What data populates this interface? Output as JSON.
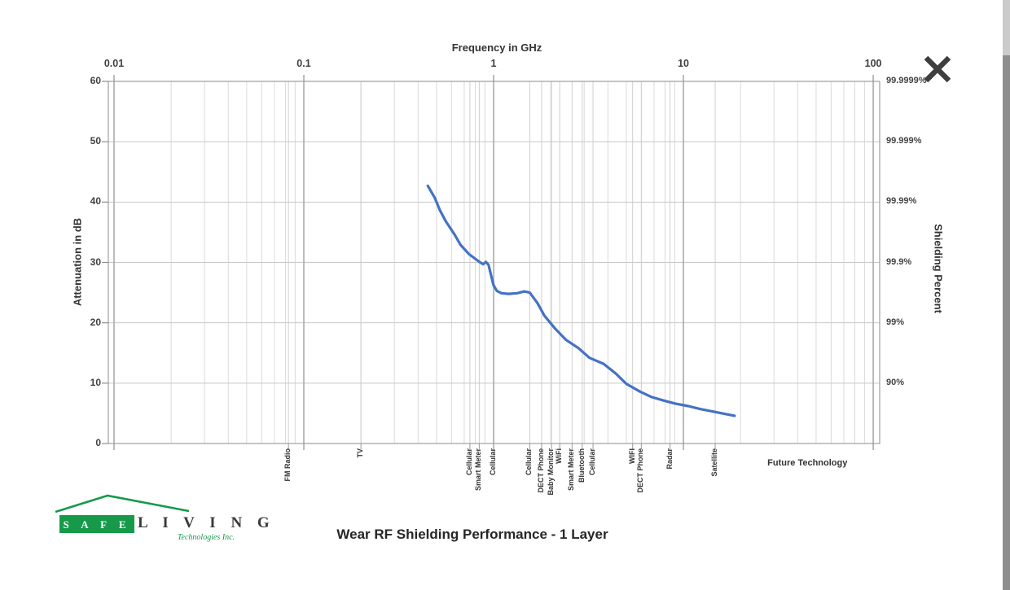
{
  "icons": {
    "close": "x-cross"
  },
  "logo": {
    "safe_letters": "S A F E",
    "living_letters": "L I V I N G",
    "subtitle": "Technologies Inc.",
    "brand_green": "#169a4a"
  },
  "chart_data": {
    "type": "line",
    "title": "Wear RF Shielding Performance - 1 Layer",
    "x_axis": {
      "label": "Frequency in GHz",
      "scale": "log",
      "tick_labels": [
        "0.01",
        "0.1",
        "1",
        "10",
        "100"
      ],
      "tick_values": [
        0.01,
        0.1,
        1,
        10,
        100
      ],
      "log_range": [
        -2.03,
        2.034
      ],
      "grid": true
    },
    "y_left_axis": {
      "label": "Attenuation in dB",
      "tick_values": [
        60,
        50,
        40,
        30,
        20,
        10,
        0
      ],
      "range": [
        0,
        60
      ],
      "grid_step": 10
    },
    "y_right_axis": {
      "label": "Shielding Percent",
      "ticks": [
        {
          "db": 60,
          "label": "99.9999%"
        },
        {
          "db": 50,
          "label": "99.999%"
        },
        {
          "db": 40,
          "label": "99.99%"
        },
        {
          "db": 30,
          "label": "99.9%"
        },
        {
          "db": 20,
          "label": "99%"
        },
        {
          "db": 10,
          "label": "90%"
        }
      ]
    },
    "series": [
      {
        "name": "Wear RF Shielding - 1 Layer",
        "color": "#4472c4",
        "points_freq_db": [
          [
            0.45,
            42.7
          ],
          [
            0.49,
            40.7
          ],
          [
            0.52,
            38.7
          ],
          [
            0.56,
            36.8
          ],
          [
            0.62,
            34.7
          ],
          [
            0.67,
            32.9
          ],
          [
            0.74,
            31.4
          ],
          [
            0.8,
            30.6
          ],
          [
            0.85,
            30.0
          ],
          [
            0.88,
            29.7
          ],
          [
            0.91,
            30.1
          ],
          [
            0.94,
            29.6
          ],
          [
            0.97,
            27.8
          ],
          [
            1.0,
            26.2
          ],
          [
            1.04,
            25.3
          ],
          [
            1.1,
            24.9
          ],
          [
            1.2,
            24.8
          ],
          [
            1.33,
            24.9
          ],
          [
            1.45,
            25.2
          ],
          [
            1.55,
            25.0
          ],
          [
            1.7,
            23.3
          ],
          [
            1.85,
            21.2
          ],
          [
            2.1,
            19.1
          ],
          [
            2.4,
            17.2
          ],
          [
            2.8,
            15.8
          ],
          [
            3.2,
            14.2
          ],
          [
            3.8,
            13.2
          ],
          [
            4.4,
            11.6
          ],
          [
            5.0,
            9.9
          ],
          [
            5.9,
            8.6
          ],
          [
            6.8,
            7.7
          ],
          [
            7.9,
            7.1
          ],
          [
            9.1,
            6.6
          ],
          [
            10.6,
            6.2
          ],
          [
            12.3,
            5.7
          ],
          [
            14.3,
            5.3
          ],
          [
            16.6,
            4.9
          ],
          [
            18.6,
            4.6
          ]
        ]
      }
    ],
    "tech_markers": [
      {
        "label": "FM Radio",
        "freq": 0.083
      },
      {
        "label": "TV",
        "freq": 0.2
      },
      {
        "label": "Cellular",
        "freq": 0.75
      },
      {
        "label": "Smart Meter",
        "freq": 0.84
      },
      {
        "label": "Cellular",
        "freq": 1.0
      },
      {
        "label": "Cellular",
        "freq": 1.55
      },
      {
        "label": "DECT Phone",
        "freq": 1.79
      },
      {
        "label": "Baby Monitor",
        "freq": 2.02
      },
      {
        "label": "WiFi",
        "freq": 2.23
      },
      {
        "label": "Smart Meter",
        "freq": 2.59
      },
      {
        "label": "Bluetooth",
        "freq": 2.93
      },
      {
        "label": "Cellular",
        "freq": 3.34
      },
      {
        "label": "WIFI",
        "freq": 5.4
      },
      {
        "label": "DECT Phone",
        "freq": 6.0
      },
      {
        "label": "Radar",
        "freq": 8.5
      },
      {
        "label": "Satellite",
        "freq": 14.7
      }
    ],
    "future_label": {
      "label": "Future Technology",
      "freq": 45
    },
    "legend": "none"
  }
}
